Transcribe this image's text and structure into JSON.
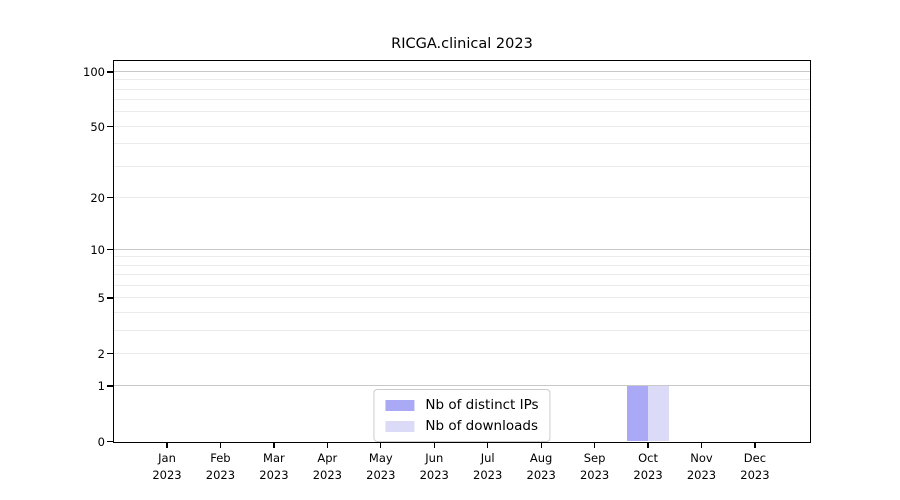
{
  "chart_data": {
    "type": "bar",
    "title": "RICGA.clinical 2023",
    "categories": [
      "Jan",
      "Feb",
      "Mar",
      "Apr",
      "May",
      "Jun",
      "Jul",
      "Aug",
      "Sep",
      "Oct",
      "Nov",
      "Dec"
    ],
    "year": "2023",
    "series": [
      {
        "name": "Nb of distinct IPs",
        "color": "#a9a9f5",
        "values": [
          0,
          0,
          0,
          0,
          0,
          0,
          0,
          0,
          0,
          1,
          0,
          0
        ]
      },
      {
        "name": "Nb of downloads",
        "color": "#dbdbf8",
        "values": [
          0,
          0,
          0,
          0,
          0,
          0,
          0,
          0,
          0,
          1,
          0,
          0
        ]
      }
    ],
    "y_ticks": [
      0,
      1,
      2,
      5,
      10,
      20,
      50,
      100
    ],
    "y_scale": "log10(1+x)",
    "ylim": [
      0,
      115
    ],
    "xlabel": "",
    "ylabel": "",
    "legend_position": "lower center",
    "grid": "horizontal",
    "grid_major_color": "#c8c8c8",
    "grid_minor_color": "#ececec",
    "axis_color": "#000000",
    "background": "#ffffff"
  }
}
